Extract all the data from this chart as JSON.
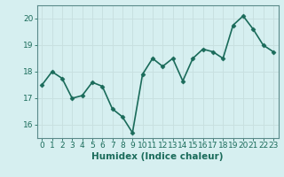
{
  "x": [
    0,
    1,
    2,
    3,
    4,
    5,
    6,
    7,
    8,
    9,
    10,
    11,
    12,
    13,
    14,
    15,
    16,
    17,
    18,
    19,
    20,
    21,
    22,
    23
  ],
  "y": [
    17.5,
    18.0,
    17.75,
    17.0,
    17.1,
    17.6,
    17.45,
    16.6,
    16.3,
    15.7,
    17.9,
    18.5,
    18.2,
    18.5,
    17.65,
    18.5,
    18.85,
    18.75,
    18.5,
    19.75,
    20.1,
    19.6,
    19.0,
    18.75
  ],
  "line_color": "#1a6b5a",
  "marker": "D",
  "marker_size": 2.5,
  "bg_color": "#d6eff0",
  "grid_color": "#c8e0e0",
  "xlabel": "Humidex (Indice chaleur)",
  "ylabel": "",
  "ylim": [
    15.5,
    20.5
  ],
  "xlim": [
    -0.5,
    23.5
  ],
  "yticks": [
    16,
    17,
    18,
    19,
    20
  ],
  "xticks": [
    0,
    1,
    2,
    3,
    4,
    5,
    6,
    7,
    8,
    9,
    10,
    11,
    12,
    13,
    14,
    15,
    16,
    17,
    18,
    19,
    20,
    21,
    22,
    23
  ],
  "tick_label_size": 6.5,
  "xlabel_size": 7.5,
  "line_width": 1.2,
  "spine_color": "#5a8a8a",
  "tick_color": "#1a6b5a"
}
